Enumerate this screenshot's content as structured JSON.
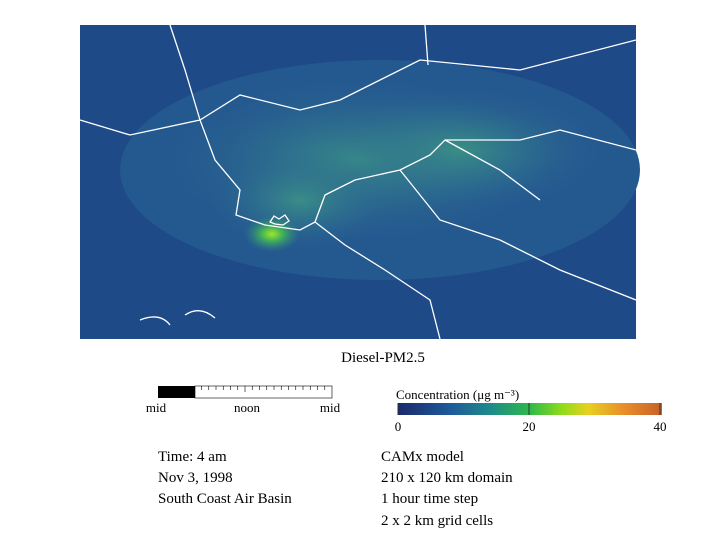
{
  "title": "Diesel-PM2.5",
  "timeline": {
    "labels": [
      "mid",
      "noon",
      "mid"
    ]
  },
  "colorbar": {
    "label": "Concentration (μg m⁻³)",
    "ticks": [
      0,
      20,
      40
    ]
  },
  "info_left": [
    "Time: 4 am",
    "Nov 3, 1998",
    "South Coast Air Basin"
  ],
  "info_right": [
    "CAMx model",
    "210 x 120 km domain",
    "1 hour time step",
    "2 x 2 km grid cells"
  ]
}
